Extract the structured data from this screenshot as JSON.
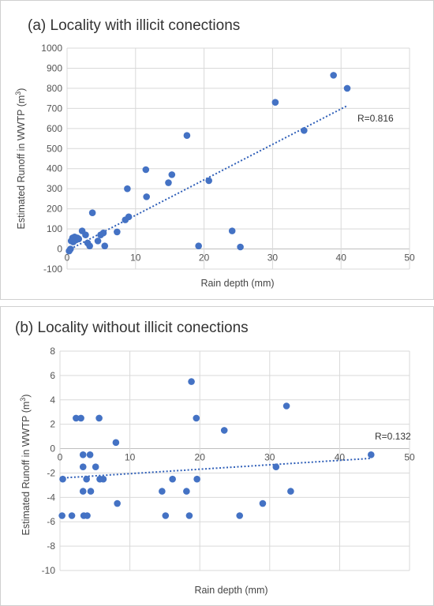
{
  "chart_data": [
    {
      "type": "scatter",
      "title": "(a) Locality with illicit conections",
      "xlabel": "Rain depth (mm)",
      "ylabel_main": "Estimated Runoff in WWTP (m",
      "ylabel_sup": "3",
      "ylabel_end": ")",
      "xlim": [
        0,
        50
      ],
      "ylim": [
        -100,
        1000
      ],
      "xticks": [
        0,
        10,
        20,
        30,
        40,
        50
      ],
      "yticks": [
        -100,
        0,
        100,
        200,
        300,
        400,
        500,
        600,
        700,
        800,
        900,
        1000
      ],
      "grid": true,
      "annotation": "R=0.816",
      "color": "#4472C4",
      "trendline": {
        "x": [
          0.5,
          41
        ],
        "y": [
          0,
          715
        ]
      },
      "points": [
        [
          0.3,
          -10
        ],
        [
          0.5,
          0
        ],
        [
          0.6,
          40
        ],
        [
          0.8,
          55
        ],
        [
          0.9,
          35
        ],
        [
          1.0,
          50
        ],
        [
          1.1,
          60
        ],
        [
          1.3,
          45
        ],
        [
          1.5,
          55
        ],
        [
          1.7,
          50
        ],
        [
          2.2,
          90
        ],
        [
          2.7,
          70
        ],
        [
          3.0,
          30
        ],
        [
          3.3,
          15
        ],
        [
          3.7,
          180
        ],
        [
          4.5,
          40
        ],
        [
          4.9,
          70
        ],
        [
          5.3,
          80
        ],
        [
          5.5,
          15
        ],
        [
          7.3,
          85
        ],
        [
          8.5,
          145
        ],
        [
          8.8,
          300
        ],
        [
          9.0,
          160
        ],
        [
          11.5,
          395
        ],
        [
          11.6,
          260
        ],
        [
          14.8,
          330
        ],
        [
          15.3,
          370
        ],
        [
          17.5,
          565
        ],
        [
          19.2,
          15
        ],
        [
          20.7,
          340
        ],
        [
          24.1,
          90
        ],
        [
          25.3,
          10
        ],
        [
          30.4,
          730
        ],
        [
          34.6,
          590
        ],
        [
          38.9,
          865
        ],
        [
          40.9,
          800
        ]
      ]
    },
    {
      "type": "scatter",
      "title": "(b) Locality without illicit conections",
      "xlabel": "Rain depth (mm)",
      "ylabel_main": "Estimated Runoff in WWTP (m",
      "ylabel_sup": "3",
      "ylabel_end": ")",
      "xlim": [
        0,
        50
      ],
      "ylim": [
        -10,
        8
      ],
      "xticks": [
        0,
        10,
        20,
        30,
        40,
        50
      ],
      "yticks": [
        -10,
        -8,
        -6,
        -4,
        -2,
        0,
        2,
        4,
        6,
        8
      ],
      "grid": true,
      "annotation": "R=0.132",
      "color": "#4472C4",
      "trendline": {
        "x": [
          0.5,
          44.5
        ],
        "y": [
          -2.4,
          -0.8
        ]
      },
      "points": [
        [
          0.3,
          -5.5
        ],
        [
          0.4,
          -2.5
        ],
        [
          1.7,
          -5.5
        ],
        [
          2.3,
          2.5
        ],
        [
          3.0,
          2.5
        ],
        [
          3.3,
          -0.5
        ],
        [
          3.3,
          -1.5
        ],
        [
          3.3,
          -3.5
        ],
        [
          3.4,
          -5.5
        ],
        [
          3.8,
          -2.5
        ],
        [
          3.9,
          -5.5
        ],
        [
          4.3,
          -0.5
        ],
        [
          4.4,
          -3.5
        ],
        [
          5.1,
          -1.5
        ],
        [
          5.6,
          2.5
        ],
        [
          5.7,
          -2.5
        ],
        [
          6.2,
          -2.5
        ],
        [
          8.0,
          0.5
        ],
        [
          8.2,
          -4.5
        ],
        [
          14.6,
          -3.5
        ],
        [
          15.1,
          -5.5
        ],
        [
          16.1,
          -2.5
        ],
        [
          18.1,
          -3.5
        ],
        [
          18.5,
          -5.5
        ],
        [
          18.8,
          5.5
        ],
        [
          19.5,
          2.5
        ],
        [
          19.6,
          -2.5
        ],
        [
          23.5,
          1.5
        ],
        [
          25.7,
          -5.5
        ],
        [
          29.0,
          -4.5
        ],
        [
          30.9,
          -1.5
        ],
        [
          32.4,
          3.5
        ],
        [
          33.0,
          -3.5
        ],
        [
          44.5,
          -0.5
        ]
      ]
    }
  ]
}
